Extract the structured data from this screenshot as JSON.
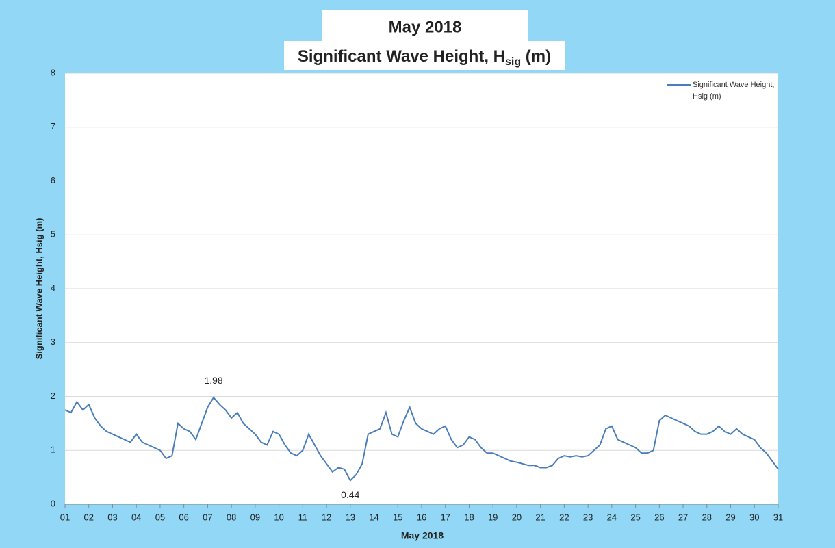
{
  "chart_data": {
    "type": "line",
    "title": "May 2018",
    "subtitle": {
      "text": "Significant Wave Height, H",
      "subscript": "sig",
      "suffix": " (m)"
    },
    "x_label": "May 2018",
    "y_label": "Significant Wave Height, Hsig (m)",
    "legend": "top-right",
    "grid": true,
    "xlim": [
      1,
      31
    ],
    "ylim": [
      0,
      8
    ],
    "yticks": [
      0,
      1,
      2,
      3,
      4,
      5,
      6,
      7,
      8
    ],
    "xticks": [
      {
        "value": 1,
        "label": "01"
      },
      {
        "value": 2,
        "label": "02"
      },
      {
        "value": 3,
        "label": "03"
      },
      {
        "value": 4,
        "label": "04"
      },
      {
        "value": 5,
        "label": "05"
      },
      {
        "value": 6,
        "label": "06"
      },
      {
        "value": 7,
        "label": "07"
      },
      {
        "value": 8,
        "label": "08"
      },
      {
        "value": 9,
        "label": "09"
      },
      {
        "value": 10,
        "label": "10"
      },
      {
        "value": 11,
        "label": "11"
      },
      {
        "value": 12,
        "label": "12"
      },
      {
        "value": 13,
        "label": "13"
      },
      {
        "value": 14,
        "label": "14"
      },
      {
        "value": 15,
        "label": "15"
      },
      {
        "value": 16,
        "label": "16"
      },
      {
        "value": 17,
        "label": "17"
      },
      {
        "value": 18,
        "label": "18"
      },
      {
        "value": 19,
        "label": "19"
      },
      {
        "value": 20,
        "label": "20"
      },
      {
        "value": 21,
        "label": "21"
      },
      {
        "value": 22,
        "label": "22"
      },
      {
        "value": 23,
        "label": "23"
      },
      {
        "value": 24,
        "label": "24"
      },
      {
        "value": 25,
        "label": "25"
      },
      {
        "value": 26,
        "label": "26"
      },
      {
        "value": 27,
        "label": "27"
      },
      {
        "value": 28,
        "label": "28"
      },
      {
        "value": 29,
        "label": "29"
      },
      {
        "value": 30,
        "label": "30"
      },
      {
        "value": 31,
        "label": "31"
      }
    ],
    "x": [
      1,
      1.25,
      1.5,
      1.75,
      2,
      2.25,
      2.5,
      2.75,
      3,
      3.25,
      3.5,
      3.75,
      4,
      4.25,
      4.5,
      4.75,
      5,
      5.25,
      5.5,
      5.75,
      6,
      6.25,
      6.5,
      6.75,
      7,
      7.25,
      7.5,
      7.75,
      8,
      8.25,
      8.5,
      8.75,
      9,
      9.25,
      9.5,
      9.75,
      10,
      10.25,
      10.5,
      10.75,
      11,
      11.25,
      11.5,
      11.75,
      12,
      12.25,
      12.5,
      12.75,
      13,
      13.25,
      13.5,
      13.75,
      14,
      14.25,
      14.5,
      14.75,
      15,
      15.25,
      15.5,
      15.75,
      16,
      16.25,
      16.5,
      16.75,
      17,
      17.25,
      17.5,
      17.75,
      18,
      18.25,
      18.5,
      18.75,
      19,
      19.25,
      19.5,
      19.75,
      20,
      20.25,
      20.5,
      20.75,
      21,
      21.25,
      21.5,
      21.75,
      22,
      22.25,
      22.5,
      22.75,
      23,
      23.25,
      23.5,
      23.75,
      24,
      24.25,
      24.5,
      24.75,
      25,
      25.25,
      25.5,
      25.75,
      26,
      26.25,
      26.5,
      26.75,
      27,
      27.25,
      27.5,
      27.75,
      28,
      28.25,
      28.5,
      28.75,
      29,
      29.25,
      29.5,
      29.75,
      30,
      30.25,
      30.5,
      30.75,
      31
    ],
    "series": [
      {
        "name": "Significant Wave Height, Hsig (m)",
        "color": "#4a7ebb",
        "values": [
          1.75,
          1.7,
          1.9,
          1.75,
          1.85,
          1.6,
          1.45,
          1.35,
          1.3,
          1.25,
          1.2,
          1.15,
          1.3,
          1.15,
          1.1,
          1.05,
          1.0,
          0.85,
          0.9,
          1.5,
          1.4,
          1.35,
          1.2,
          1.5,
          1.8,
          1.98,
          1.85,
          1.75,
          1.6,
          1.7,
          1.5,
          1.4,
          1.3,
          1.15,
          1.1,
          1.35,
          1.3,
          1.1,
          0.95,
          0.9,
          1.0,
          1.3,
          1.1,
          0.9,
          0.75,
          0.6,
          0.68,
          0.65,
          0.44,
          0.55,
          0.75,
          1.3,
          1.35,
          1.4,
          1.7,
          1.3,
          1.25,
          1.55,
          1.8,
          1.5,
          1.4,
          1.35,
          1.3,
          1.4,
          1.45,
          1.2,
          1.05,
          1.1,
          1.25,
          1.2,
          1.05,
          0.95,
          0.95,
          0.9,
          0.85,
          0.8,
          0.78,
          0.75,
          0.72,
          0.72,
          0.68,
          0.68,
          0.72,
          0.85,
          0.9,
          0.88,
          0.9,
          0.88,
          0.9,
          1.0,
          1.1,
          1.4,
          1.45,
          1.2,
          1.15,
          1.1,
          1.05,
          0.95,
          0.95,
          1.0,
          1.55,
          1.65,
          1.6,
          1.55,
          1.5,
          1.45,
          1.35,
          1.3,
          1.3,
          1.35,
          1.45,
          1.35,
          1.3,
          1.4,
          1.3,
          1.25,
          1.2,
          1.05,
          0.95,
          0.8,
          0.65
        ]
      }
    ],
    "annotations": [
      {
        "x": 7.25,
        "y": 1.98,
        "label": "1.98"
      },
      {
        "x": 13,
        "y": 0.44,
        "label": "0.44"
      }
    ]
  }
}
